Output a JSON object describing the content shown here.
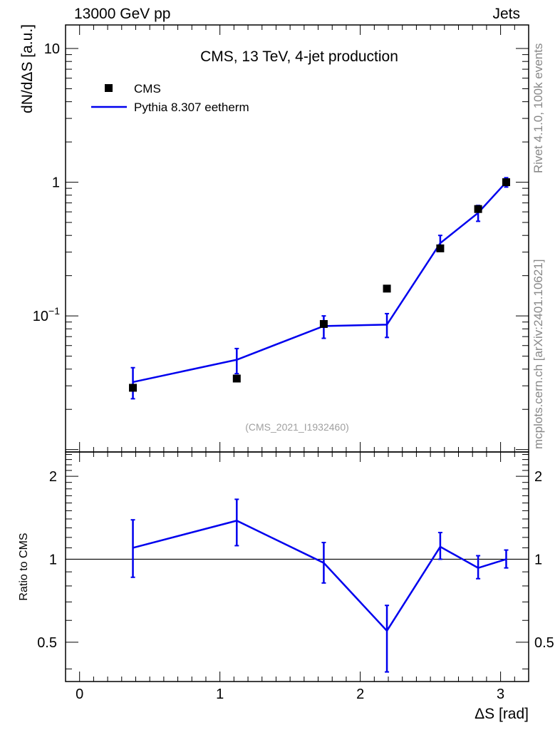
{
  "header": {
    "energy_label": "13000 GeV pp",
    "category_label": "Jets"
  },
  "side": {
    "rivet_label": "Rivet 4.1.0,  100k events",
    "source_label": "mcplots.cern.ch [arXiv:2401.10621]"
  },
  "chart_data": [
    {
      "type": "scatter",
      "panel": "main",
      "title": "CMS, 13 TeV, 4-jet production",
      "ylabel": "dN/dΔS [a.u.]",
      "analysis_tag": "(CMS_2021_I1932460)",
      "yscale": "log",
      "xlim": [
        -0.1,
        3.2
      ],
      "ylim": [
        0.0096,
        15
      ],
      "y_ticks": [
        {
          "value": 10,
          "label": "10"
        },
        {
          "value": 1,
          "label": "1"
        },
        {
          "value": 0.1,
          "label": "10⁻¹"
        }
      ],
      "legend_position": "top-left",
      "series": [
        {
          "name": "CMS",
          "style": "markers",
          "color": "#000000",
          "x": [
            0.38,
            1.12,
            1.74,
            2.19,
            2.57,
            2.84,
            3.04
          ],
          "y": [
            0.029,
            0.034,
            0.087,
            0.16,
            0.32,
            0.63,
            1.0
          ]
        },
        {
          "name": "Pythia 8.307 eetherm",
          "style": "line",
          "color": "#0000ee",
          "x": [
            0.38,
            1.12,
            1.74,
            2.19,
            2.57,
            2.84,
            3.04
          ],
          "y": [
            0.032,
            0.047,
            0.084,
            0.086,
            0.35,
            0.59,
            1.0
          ],
          "err_low": [
            0.024,
            0.037,
            0.068,
            0.069,
            0.31,
            0.51,
            0.92
          ],
          "err_high": [
            0.041,
            0.057,
            0.1,
            0.104,
            0.4,
            0.67,
            1.08
          ]
        }
      ]
    },
    {
      "type": "line",
      "panel": "ratio",
      "ylabel": "Ratio to CMS",
      "xlabel": "ΔS [rad]",
      "xlim": [
        -0.1,
        3.2
      ],
      "ylim": [
        0.36,
        2.45
      ],
      "yscale": "log",
      "x_ticks": [
        {
          "value": 0,
          "label": "0"
        },
        {
          "value": 1,
          "label": "1"
        },
        {
          "value": 2,
          "label": "2"
        },
        {
          "value": 3,
          "label": "3"
        }
      ],
      "y_ticks": [
        {
          "value": 2,
          "label": "2"
        },
        {
          "value": 1,
          "label": "1"
        },
        {
          "value": 0.5,
          "label": "0.5"
        }
      ],
      "reference_line": 1,
      "series": [
        {
          "name": "Pythia 8.307 eetherm",
          "color": "#0000ee",
          "x": [
            0.38,
            1.12,
            1.74,
            2.19,
            2.57,
            2.84,
            3.04
          ],
          "y": [
            1.1,
            1.38,
            0.97,
            0.55,
            1.11,
            0.93,
            1.0
          ],
          "err_low": [
            0.86,
            1.12,
            0.82,
            0.39,
            1.0,
            0.85,
            0.93
          ],
          "err_high": [
            1.39,
            1.65,
            1.15,
            0.68,
            1.25,
            1.03,
            1.08
          ]
        }
      ]
    }
  ]
}
